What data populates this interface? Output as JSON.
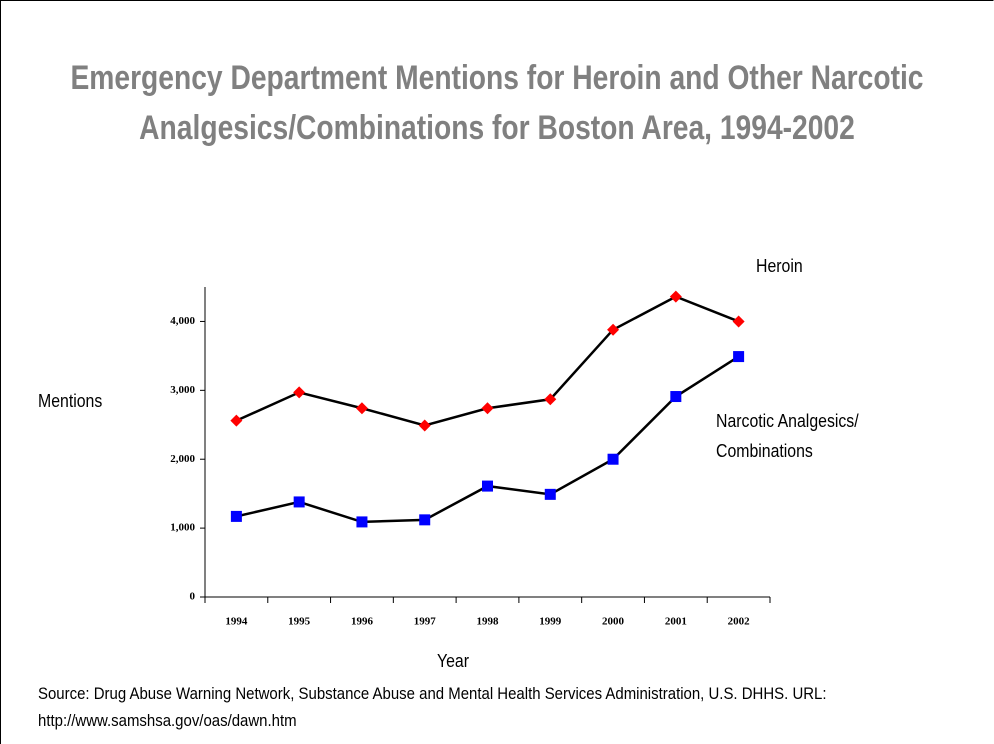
{
  "chart_data": {
    "type": "line",
    "title": "Emergency Department Mentions for Heroin and Other Narcotic Analgesics/Combinations for Boston Area, 1994-2002",
    "x_label": "Year",
    "y_label": "Mentions",
    "source": "Source:  Drug Abuse Warning Network, Substance Abuse and Mental Health Services Administration, U.S. DHHS. URL: http://www.samshsa.gov/oas/dawn.htm",
    "categories": [
      "1994",
      "1995",
      "1996",
      "1997",
      "1998",
      "1999",
      "2000",
      "2001",
      "2002"
    ],
    "series": [
      {
        "name": "Heroin",
        "color": "#ff0000",
        "marker": "diamond",
        "values": [
          2560,
          2970,
          2740,
          2490,
          2740,
          2870,
          3880,
          4360,
          4000
        ]
      },
      {
        "name": "Narcotic Analgesics/ Combinations",
        "color": "#0000ff",
        "marker": "square",
        "values": [
          1170,
          1380,
          1090,
          1120,
          1610,
          1490,
          2000,
          2910,
          3490
        ]
      }
    ],
    "line_color": "#000000",
    "ylim": [
      0,
      4500
    ],
    "yticks": [
      0,
      {
        "value": 1000,
        "label": "1,000"
      },
      {
        "value": 2000,
        "label": "2,000"
      },
      {
        "value": 3000,
        "label": "3,000"
      },
      {
        "value": 4000,
        "label": "4,000"
      }
    ]
  }
}
